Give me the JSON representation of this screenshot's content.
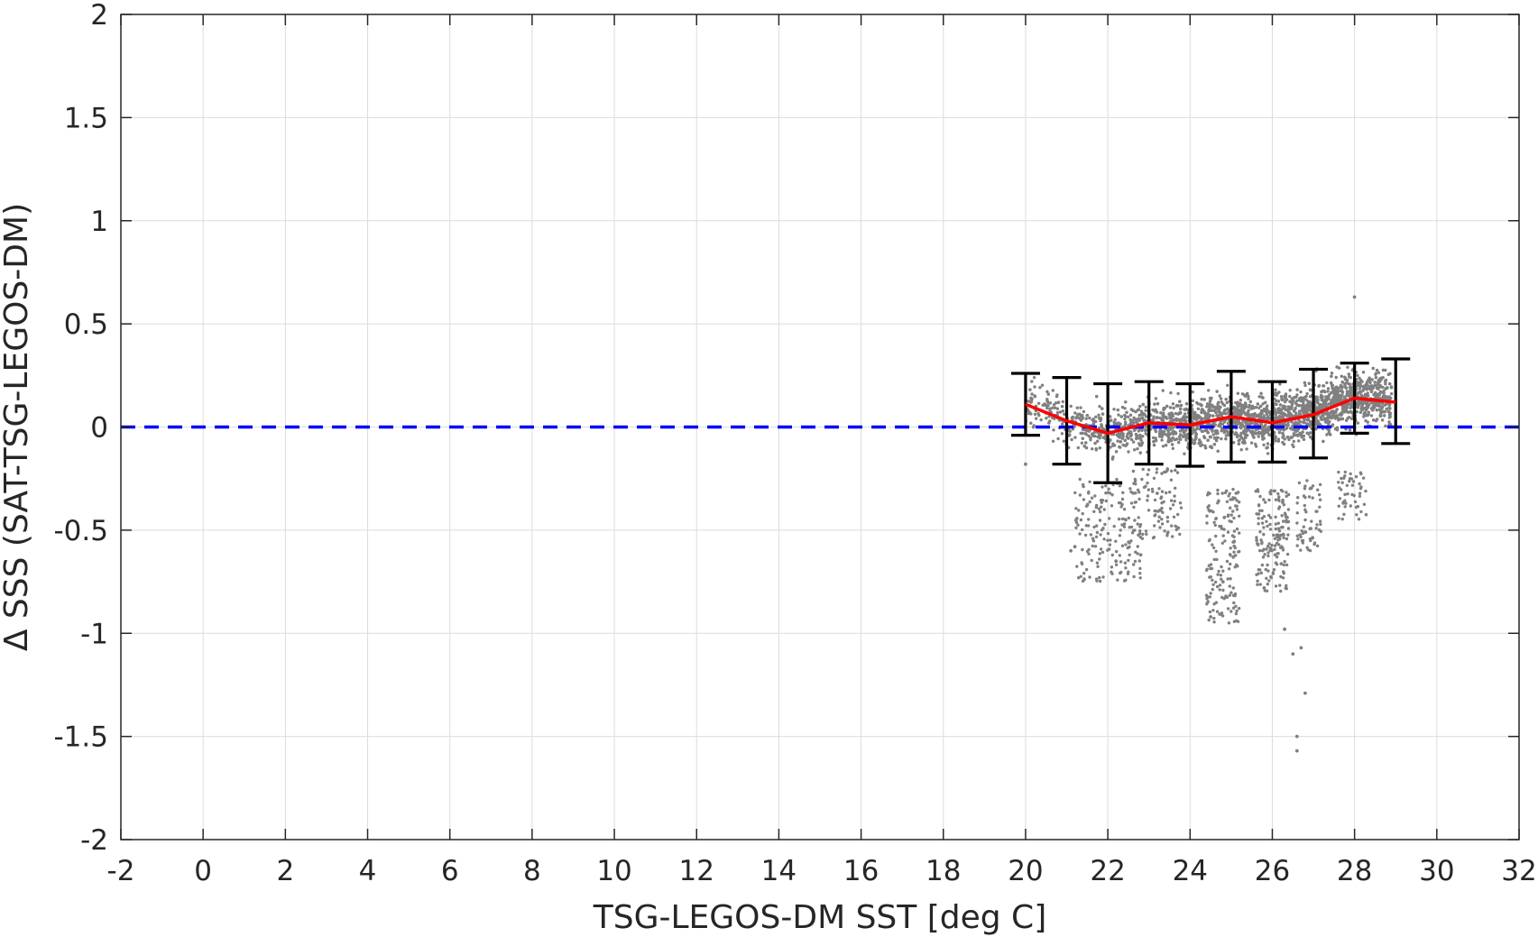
{
  "chart_data": {
    "type": "scatter",
    "title": "",
    "xlabel": "TSG-LEGOS-DM SST [deg C]",
    "ylabel": "Δ SSS (SAT-TSG-LEGOS-DM)",
    "xlim": [
      -2,
      32
    ],
    "ylim": [
      -2,
      2
    ],
    "xticks": [
      "-2",
      "0",
      "2",
      "4",
      "6",
      "8",
      "10",
      "12",
      "14",
      "16",
      "18",
      "20",
      "22",
      "24",
      "26",
      "28",
      "30",
      "32"
    ],
    "yticks": [
      "-2",
      "-1.5",
      "-1",
      "-0.5",
      "0",
      "0.5",
      "1",
      "1.5",
      "2"
    ],
    "grid": true,
    "colors": {
      "scatter": "#808080",
      "mean_line": "#ff0000",
      "zero_line": "#0000ff",
      "error_bars": "#000000"
    },
    "reference_line": {
      "y": 0,
      "style": "dashed"
    },
    "binned_stats": {
      "x": [
        20,
        21,
        22,
        23,
        24,
        25,
        26,
        27,
        28,
        29
      ],
      "mean": [
        0.11,
        0.03,
        -0.03,
        0.02,
        0.01,
        0.05,
        0.02,
        0.06,
        0.14,
        0.12
      ],
      "lower": [
        -0.04,
        -0.18,
        -0.27,
        -0.18,
        -0.19,
        -0.17,
        -0.17,
        -0.15,
        -0.03,
        -0.08
      ],
      "upper": [
        0.26,
        0.24,
        0.21,
        0.22,
        0.21,
        0.27,
        0.22,
        0.28,
        0.31,
        0.33
      ]
    },
    "scatter_cloud": {
      "x_range": [
        20,
        28.9
      ],
      "core_y_range": [
        -0.25,
        0.55
      ],
      "outliers": [
        {
          "x": 20.0,
          "y": -0.18
        },
        {
          "x": 21.1,
          "y": -0.6
        },
        {
          "x": 21.2,
          "y": -0.58
        },
        {
          "x": 22.2,
          "y": -0.65
        },
        {
          "x": 22.8,
          "y": -0.62
        },
        {
          "x": 24.5,
          "y": -0.92
        },
        {
          "x": 24.8,
          "y": -0.75
        },
        {
          "x": 25.8,
          "y": -0.78
        },
        {
          "x": 26.3,
          "y": -0.98
        },
        {
          "x": 26.5,
          "y": -1.1
        },
        {
          "x": 26.7,
          "y": -1.07
        },
        {
          "x": 26.8,
          "y": -1.29
        },
        {
          "x": 26.6,
          "y": -1.5
        },
        {
          "x": 26.6,
          "y": -1.57
        },
        {
          "x": 28.0,
          "y": 0.63
        }
      ]
    }
  }
}
